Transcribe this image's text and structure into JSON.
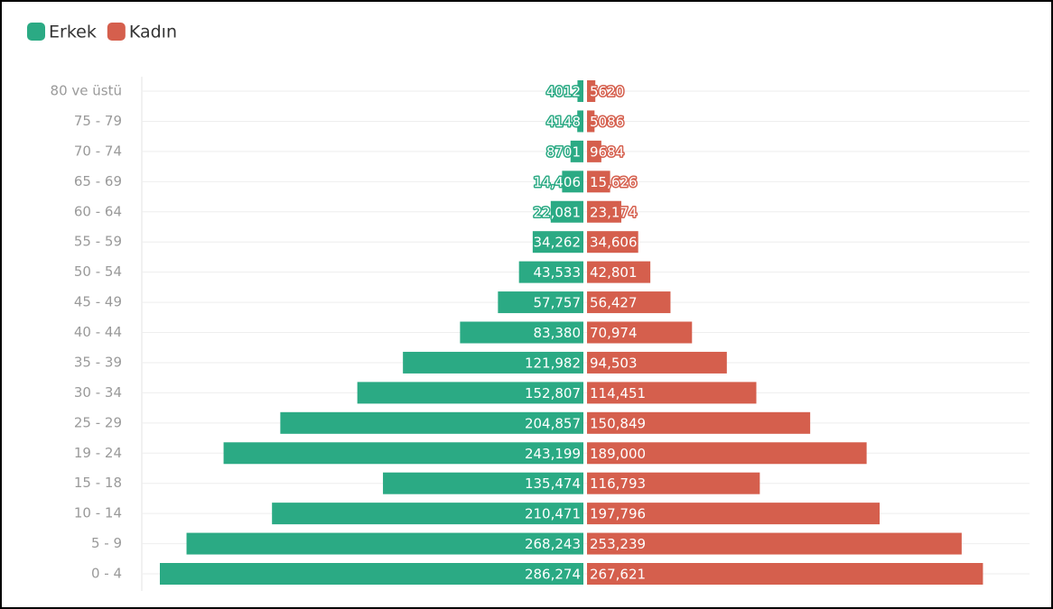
{
  "chart_data": {
    "type": "pyramid",
    "categories": [
      "80 ve üstü",
      "75 - 79",
      "70 - 74",
      "65 - 69",
      "60 - 64",
      "55 - 59",
      "50 - 54",
      "45 - 49",
      "40 - 44",
      "35 - 39",
      "30 - 34",
      "25 - 29",
      "19 - 24",
      "15 - 18",
      "10 - 14",
      "5 - 9",
      "0 - 4"
    ],
    "series": [
      {
        "name": "Erkek",
        "color": "#2baa84",
        "values": [
          4012,
          4148,
          8701,
          14406,
          22081,
          34262,
          43533,
          57757,
          83380,
          121982,
          152807,
          204857,
          243199,
          135474,
          210471,
          268243,
          286274
        ],
        "value_labels": [
          "4012",
          "4148",
          "8701",
          "14,406",
          "22,081",
          "34,262",
          "43,533",
          "57,757",
          "83,380",
          "121,982",
          "152,807",
          "204,857",
          "243,199",
          "135,474",
          "210,471",
          "268,243",
          "286,274"
        ]
      },
      {
        "name": "Kadın",
        "color": "#d55f4d",
        "values": [
          5620,
          5086,
          9684,
          15626,
          23174,
          34606,
          42801,
          56427,
          70974,
          94503,
          114451,
          150849,
          189000,
          116793,
          197796,
          253239,
          267621
        ],
        "value_labels": [
          "5620",
          "5086",
          "9684",
          "15,626",
          "23,174",
          "34,606",
          "42,801",
          "56,427",
          "70,974",
          "94,503",
          "114,451",
          "150,849",
          "189,000",
          "116,793",
          "197,796",
          "253,239",
          "267,621"
        ]
      }
    ],
    "legend": "top-left"
  }
}
